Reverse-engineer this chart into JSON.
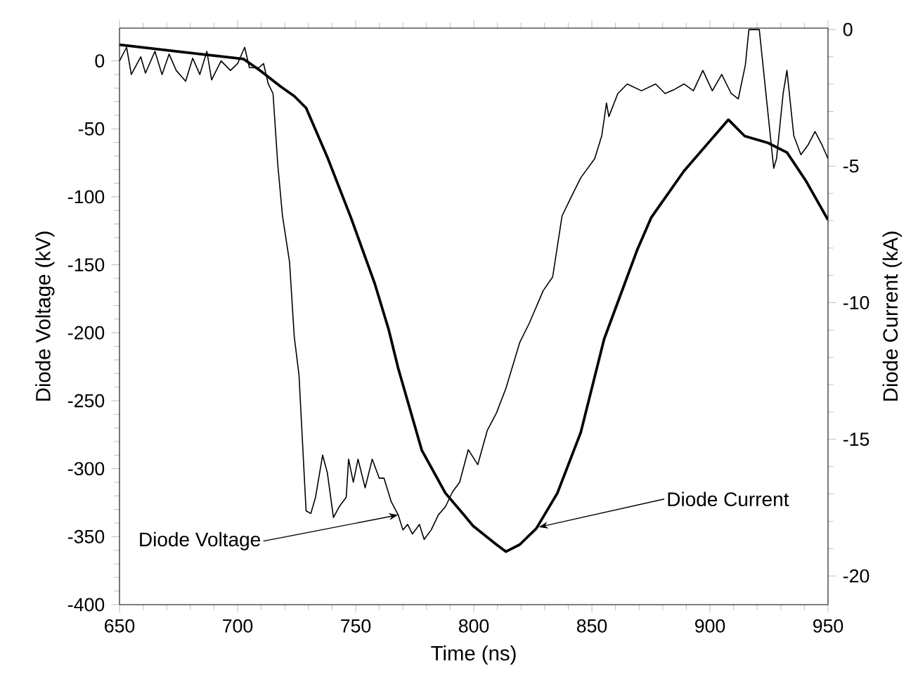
{
  "chart_data": {
    "type": "line",
    "xlabel": "Time (ns)",
    "ylabel": "Diode Voltage (kV)",
    "y2label": "Diode Current (kA)",
    "xlim": [
      650,
      950
    ],
    "xticks": [
      650,
      700,
      750,
      800,
      850,
      900,
      950
    ],
    "ylim": [
      -400,
      24.1
    ],
    "yticks": [
      -400,
      -350,
      -300,
      -250,
      -200,
      -150,
      -100,
      -50,
      0
    ],
    "y2lim": [
      -21.05,
      0.05
    ],
    "y2ticks": [
      -20,
      -15,
      -10,
      -5,
      0
    ],
    "series": [
      {
        "color": "#000000",
        "x": [
          650,
          653,
          655,
          659,
          661,
          665,
          668,
          671,
          674,
          678,
          681,
          684,
          687,
          689,
          693,
          697,
          700,
          703,
          705,
          709,
          711,
          713,
          715,
          717,
          719,
          722,
          724,
          726,
          729,
          731,
          733,
          736,
          738,
          740.6,
          743,
          746,
          747,
          749,
          751,
          754,
          757,
          760,
          762,
          765,
          768,
          770,
          772,
          774,
          777,
          779,
          782,
          785,
          788,
          791,
          794,
          797.7,
          801.7,
          805.7,
          809.6,
          813.6,
          819.5,
          823.5,
          829.4,
          833.4,
          837.4,
          841.3,
          845.3,
          851.2,
          854.2,
          856.2,
          857.2,
          861,
          865,
          871,
          877,
          881,
          885,
          889,
          893,
          897,
          901,
          905,
          909,
          912,
          915,
          916.5,
          920.9,
          927,
          928.2,
          931,
          932.6,
          935.5,
          938.5,
          941.5,
          944.5,
          947.5,
          950
        ],
        "values": [
          0,
          10,
          -10,
          3,
          -9,
          7,
          -10,
          5,
          -7,
          -15,
          2,
          -10,
          7,
          -14,
          0,
          -7,
          -2,
          10,
          -5,
          -5,
          -2,
          -17,
          -24,
          -76,
          -114,
          -148,
          -203,
          -231,
          -331,
          -333,
          -321,
          -290,
          -303,
          -336,
          -328,
          -321,
          -293,
          -310,
          -293,
          -314,
          -293,
          -307,
          -307,
          -324,
          -334,
          -345,
          -341,
          -348,
          -341,
          -352,
          -345,
          -334,
          -328,
          -317,
          -310,
          -286,
          -297,
          -272,
          -259,
          -241,
          -207,
          -193,
          -169,
          -159,
          -114,
          -100,
          -86,
          -72,
          -55,
          -31,
          -41,
          -24,
          -17,
          -22,
          -17,
          -24,
          -21,
          -17,
          -22,
          -7,
          -22,
          -10,
          -24,
          -28,
          -3,
          23,
          23,
          -79,
          -72,
          -24,
          -7,
          -55,
          -69,
          -62,
          -52,
          -62,
          -72
        ]
      },
      {
        "color": "#000000",
        "axis": "y2",
        "x": [
          650,
          702.5,
          709.5,
          718.4,
          724,
          729,
          738,
          748,
          758,
          764,
          768,
          778,
          788,
          795.7,
          799.7,
          809.6,
          813.6,
          819.5,
          826.5,
          835.4,
          845.3,
          855.2,
          869.1,
          875.1,
          889,
          907.8,
          914.7,
          924.6,
          932.6,
          940.5,
          950
        ],
        "values": [
          -0.56,
          -1.08,
          -1.5,
          -2.1,
          -2.44,
          -2.87,
          -4.67,
          -6.89,
          -9.28,
          -10.99,
          -12.4,
          -15.4,
          -16.97,
          -17.75,
          -18.17,
          -18.85,
          -19.11,
          -18.85,
          -18.26,
          -16.97,
          -14.75,
          -11.33,
          -8.09,
          -6.89,
          -5.18,
          -3.3,
          -3.9,
          -4.15,
          -4.5,
          -5.52,
          -6.97
        ]
      }
    ],
    "annotations": [
      {
        "text": "Diode Voltage",
        "x": 768,
        "y": -334
      },
      {
        "text": "Diode Current",
        "x": 827.5,
        "y": -343
      }
    ]
  }
}
